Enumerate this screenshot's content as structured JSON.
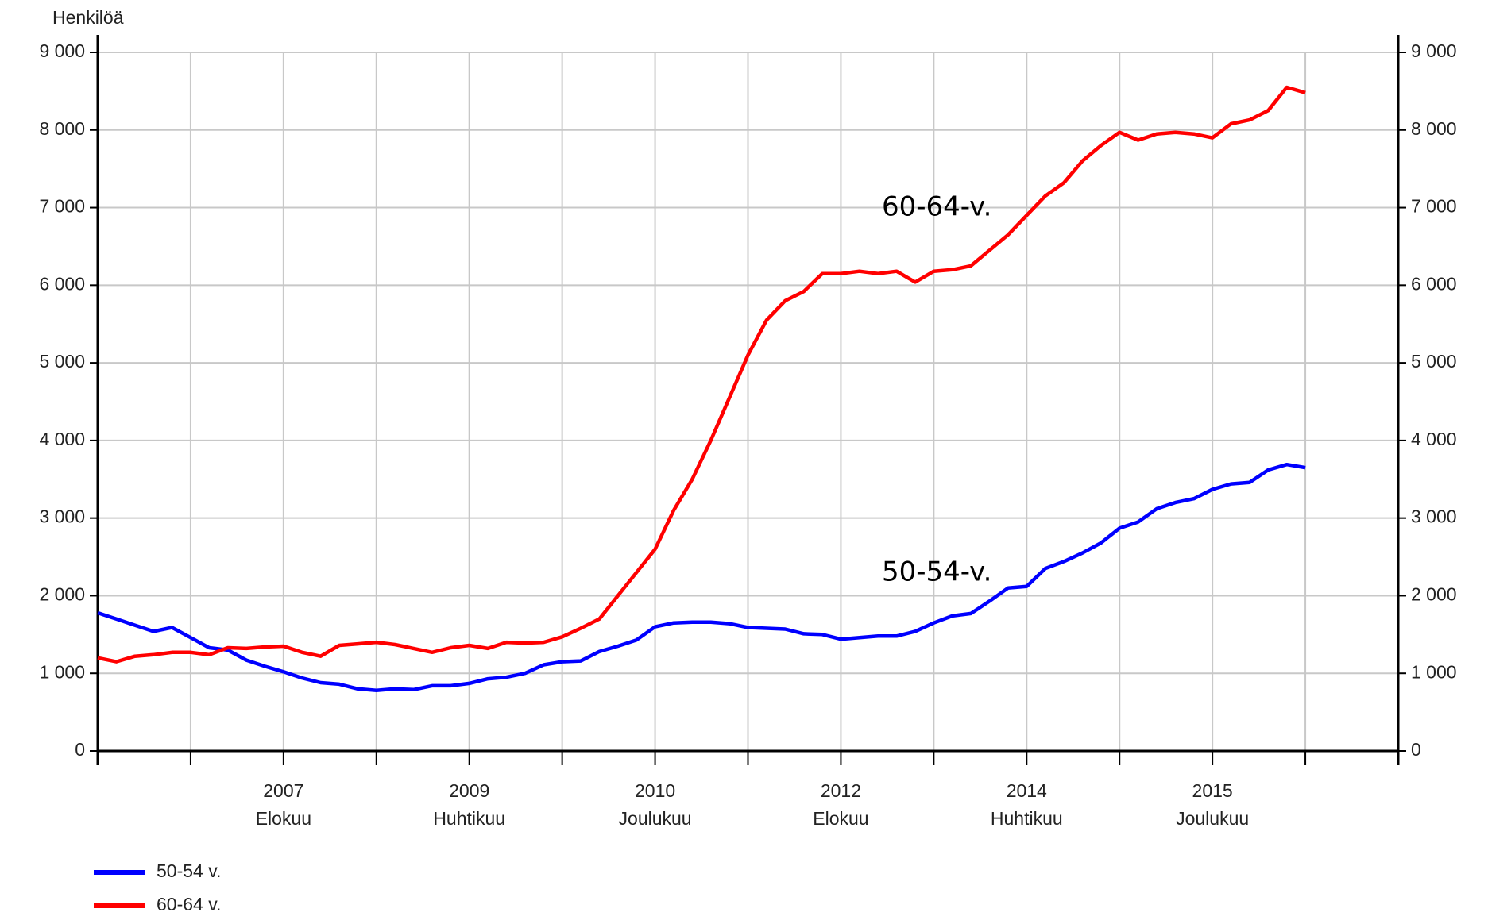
{
  "chart_data": {
    "type": "line",
    "y_label": "Henkilöä",
    "categories": [
      null,
      null,
      null,
      null,
      null,
      null,
      null,
      null,
      null,
      null,
      "2007 Elokuu",
      null,
      null,
      null,
      null,
      null,
      null,
      null,
      null,
      null,
      "2009 Huhtikuu",
      null,
      null,
      null,
      null,
      null,
      null,
      null,
      null,
      null,
      "2010 Joulukuu",
      null,
      null,
      null,
      null,
      null,
      null,
      null,
      null,
      null,
      "2012 Elokuu",
      null,
      null,
      null,
      null,
      null,
      null,
      null,
      null,
      null,
      "2014 Huhtikuu",
      null,
      null,
      null,
      null,
      null,
      null,
      null,
      null,
      null,
      "2015 Joulukuu",
      null,
      null,
      null,
      null,
      null,
      null,
      null,
      null,
      null,
      null
    ],
    "series": [
      {
        "name": "50-54 v.",
        "color": "#0000ff",
        "values": [
          1780,
          1700,
          1620,
          1540,
          1590,
          1460,
          1330,
          1300,
          1170,
          1090,
          1020,
          940,
          880,
          860,
          800,
          780,
          800,
          790,
          840,
          840,
          870,
          930,
          950,
          1000,
          1110,
          1150,
          1160,
          1280,
          1350,
          1430,
          1600,
          1650,
          1660,
          1660,
          1640,
          1590,
          1580,
          1570,
          1510,
          1500,
          1440,
          1460,
          1480,
          1480,
          1540,
          1650,
          1740,
          1770,
          1930,
          2100,
          2120,
          2350,
          2440,
          2550,
          2680,
          2870,
          2950,
          3120,
          3200,
          3250,
          3370,
          3440,
          3460,
          3620,
          3690,
          3650,
          null,
          null,
          null,
          null,
          null
        ]
      },
      {
        "name": "60-64 v.",
        "color": "#ff0000",
        "values": [
          1200,
          1150,
          1220,
          1240,
          1270,
          1270,
          1240,
          1330,
          1320,
          1340,
          1350,
          1270,
          1220,
          1360,
          1380,
          1400,
          1370,
          1320,
          1270,
          1330,
          1360,
          1320,
          1400,
          1390,
          1400,
          1470,
          1580,
          1700,
          2000,
          2300,
          2600,
          3100,
          3500,
          4000,
          4550,
          5100,
          5550,
          5800,
          5920,
          6150,
          6150,
          6180,
          6150,
          6180,
          6040,
          6180,
          6200,
          6250,
          6450,
          6650,
          6900,
          7150,
          7320,
          7600,
          7800,
          7970,
          7870,
          7950,
          7970,
          7950,
          7900,
          8080,
          8130,
          8250,
          8550,
          8480,
          null,
          null,
          null,
          null,
          null
        ]
      }
    ],
    "ylim": [
      0,
      9000
    ],
    "yticks": [
      0,
      {
        "value": 1000,
        "label": "1 000"
      },
      {
        "value": 2000,
        "label": "2 000"
      },
      {
        "value": 3000,
        "label": "3 000"
      },
      {
        "value": 4000,
        "label": "4 000"
      },
      {
        "value": 5000,
        "label": "5 000"
      },
      {
        "value": 6000,
        "label": "6 000"
      },
      {
        "value": 7000,
        "label": "7 000"
      },
      {
        "value": 8000,
        "label": "8 000"
      },
      {
        "value": 9000,
        "label": "9 000"
      }
    ],
    "y2lim": [
      0,
      9000
    ],
    "y2ticks": [
      0,
      {
        "value": 1000,
        "label": "1 000"
      },
      {
        "value": 2000,
        "label": "2 000"
      },
      {
        "value": 3000,
        "label": "3 000"
      },
      {
        "value": 4000,
        "label": "4 000"
      },
      {
        "value": 5000,
        "label": "5 000"
      },
      {
        "value": 6000,
        "label": "6 000"
      },
      {
        "value": 7000,
        "label": "7 000"
      },
      {
        "value": 8000,
        "label": "8 000"
      },
      {
        "value": 9000,
        "label": "9 000"
      }
    ],
    "grid": true,
    "legend": "bottom-left",
    "annotations": [
      "60-64-v.",
      "50-54-v."
    ]
  }
}
